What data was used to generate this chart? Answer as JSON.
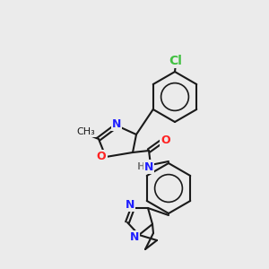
{
  "background_color": "#ebebeb",
  "bond_color": "#1a1a1a",
  "atom_colors": {
    "N": "#2020ff",
    "O": "#ff2020",
    "Cl": "#40c040",
    "H": "#808080",
    "C": "#1a1a1a"
  },
  "font_size_atom": 9,
  "fig_size": [
    3.0,
    3.0
  ],
  "dpi": 100
}
